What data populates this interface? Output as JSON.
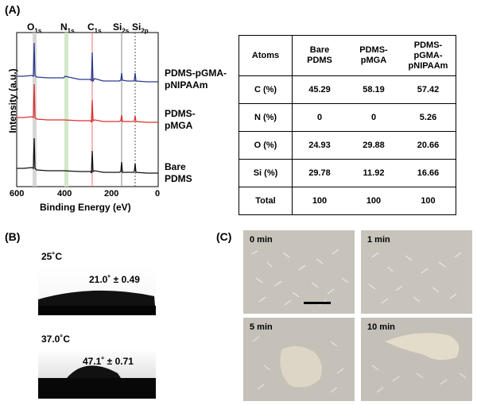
{
  "panelA": {
    "label": "(A)",
    "peak_labels": [
      {
        "sym": "O",
        "sub": "1s"
      },
      {
        "sym": "N",
        "sub": "1s"
      },
      {
        "sym": "C",
        "sub": "1s"
      },
      {
        "sym": "Si",
        "sub": "2s"
      },
      {
        "sym": "Si",
        "sub": "2p"
      }
    ],
    "ylabel": "Intensity (a.u.)",
    "xlabel": "Binding Energy (eV)",
    "xticks": [
      "600",
      "400",
      "200",
      "0"
    ],
    "spectra": [
      {
        "label_lines": [
          "PDMS-pGMA-",
          "pNIPAAm"
        ],
        "color": "#2b3a8f"
      },
      {
        "label_lines": [
          "PDMS-",
          "pMGA"
        ],
        "color": "#e03030"
      },
      {
        "label_lines": [
          "Bare",
          "PDMS"
        ],
        "color": "#111111"
      }
    ],
    "chart_data": {
      "type": "line",
      "xlabel": "Binding Energy (eV)",
      "ylabel": "Intensity (a.u.)",
      "xlim": [
        600,
        0
      ],
      "peaks_eV": {
        "O1s": 532,
        "N1s": 400,
        "C1s": 285,
        "Si2s": 153,
        "Si2p": 102
      }
    },
    "table": {
      "headers": [
        [
          "Atoms"
        ],
        [
          "Bare",
          "PDMS"
        ],
        [
          "PDMS-",
          "pMGA"
        ],
        [
          "PDMS-",
          "pGMA-",
          "pNIPAAm"
        ]
      ],
      "rows": [
        [
          "C (%)",
          "45.29",
          "58.19",
          "57.42"
        ],
        [
          "N (%)",
          "0",
          "0",
          "5.26"
        ],
        [
          "O (%)",
          "24.93",
          "29.88",
          "20.66"
        ],
        [
          "Si (%)",
          "29.78",
          "11.92",
          "16.66"
        ],
        [
          "Total",
          "100",
          "100",
          "100"
        ]
      ]
    }
  },
  "panelB": {
    "label": "(B)",
    "top_temp": "25˚C",
    "top_angle": "21.0˚ ± 0.49",
    "bottom_temp": "37.0˚C",
    "bottom_angle": "47.1˚ ± 0.71"
  },
  "panelC": {
    "label": "(C)",
    "cells": [
      "0 min",
      "1 min",
      "5 min",
      "10 min"
    ]
  }
}
